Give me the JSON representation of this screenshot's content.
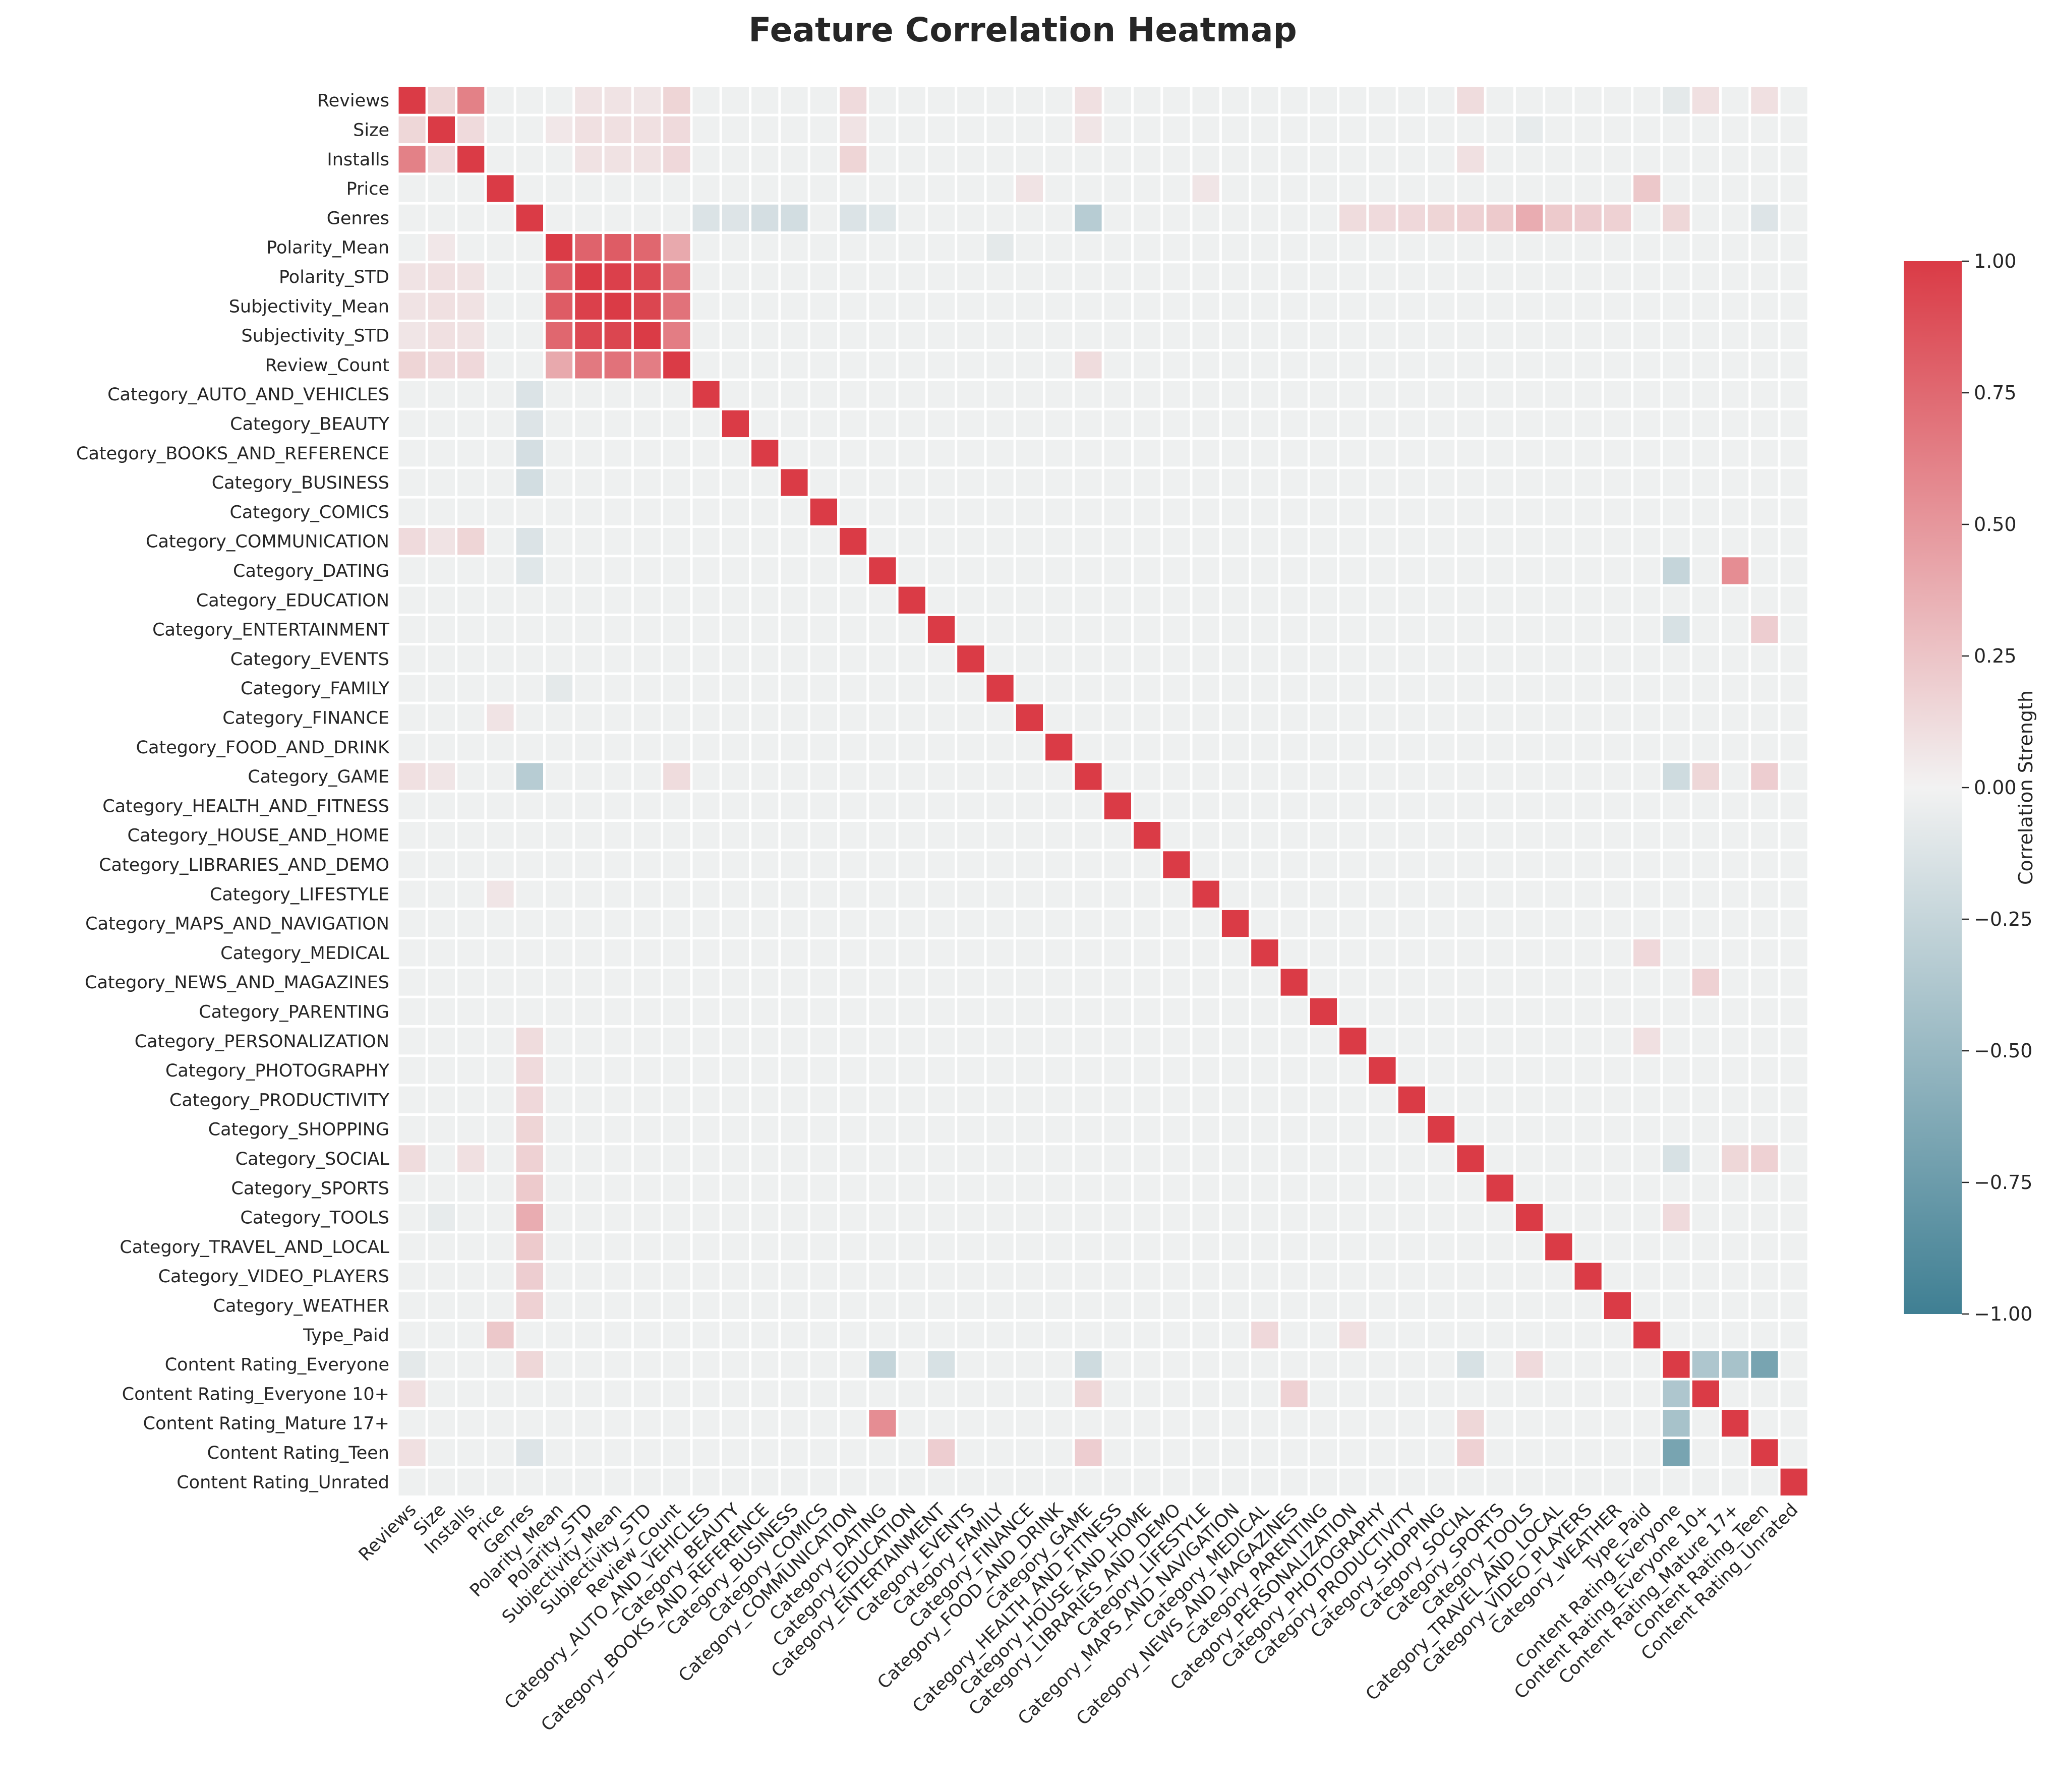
{
  "chart_data": {
    "type": "heatmap",
    "title": "Feature Correlation Heatmap",
    "features": [
      "Reviews",
      "Size",
      "Installs",
      "Price",
      "Genres",
      "Polarity_Mean",
      "Polarity_STD",
      "Subjectivity_Mean",
      "Subjectivity_STD",
      "Review_Count",
      "Category_AUTO_AND_VEHICLES",
      "Category_BEAUTY",
      "Category_BOOKS_AND_REFERENCE",
      "Category_BUSINESS",
      "Category_COMICS",
      "Category_COMMUNICATION",
      "Category_DATING",
      "Category_EDUCATION",
      "Category_ENTERTAINMENT",
      "Category_EVENTS",
      "Category_FAMILY",
      "Category_FINANCE",
      "Category_FOOD_AND_DRINK",
      "Category_GAME",
      "Category_HEALTH_AND_FITNESS",
      "Category_HOUSE_AND_HOME",
      "Category_LIBRARIES_AND_DEMO",
      "Category_LIFESTYLE",
      "Category_MAPS_AND_NAVIGATION",
      "Category_MEDICAL",
      "Category_NEWS_AND_MAGAZINES",
      "Category_PARENTING",
      "Category_PERSONALIZATION",
      "Category_PHOTOGRAPHY",
      "Category_PRODUCTIVITY",
      "Category_SHOPPING",
      "Category_SOCIAL",
      "Category_SPORTS",
      "Category_TOOLS",
      "Category_TRAVEL_AND_LOCAL",
      "Category_VIDEO_PLAYERS",
      "Category_WEATHER",
      "Type_Paid",
      "Content Rating_Everyone",
      "Content Rating_Everyone 10+",
      "Content Rating_Mature 17+",
      "Content Rating_Teen",
      "Content Rating_Unrated"
    ],
    "correlations": [
      {
        "a": "Reviews",
        "b": "Size",
        "value": 0.15
      },
      {
        "a": "Reviews",
        "b": "Installs",
        "value": 0.62
      },
      {
        "a": "Reviews",
        "b": "Polarity_STD",
        "value": 0.08
      },
      {
        "a": "Reviews",
        "b": "Subjectivity_Mean",
        "value": 0.08
      },
      {
        "a": "Reviews",
        "b": "Subjectivity_STD",
        "value": 0.07
      },
      {
        "a": "Reviews",
        "b": "Review_Count",
        "value": 0.16
      },
      {
        "a": "Reviews",
        "b": "Category_COMMUNICATION",
        "value": 0.13
      },
      {
        "a": "Reviews",
        "b": "Category_GAME",
        "value": 0.1
      },
      {
        "a": "Reviews",
        "b": "Category_SOCIAL",
        "value": 0.12
      },
      {
        "a": "Reviews",
        "b": "Content Rating_Everyone",
        "value": -0.08
      },
      {
        "a": "Reviews",
        "b": "Content Rating_Everyone 10+",
        "value": 0.1
      },
      {
        "a": "Reviews",
        "b": "Content Rating_Teen",
        "value": 0.1
      },
      {
        "a": "Size",
        "b": "Installs",
        "value": 0.13
      },
      {
        "a": "Size",
        "b": "Polarity_Mean",
        "value": 0.06
      },
      {
        "a": "Size",
        "b": "Polarity_STD",
        "value": 0.1
      },
      {
        "a": "Size",
        "b": "Subjectivity_Mean",
        "value": 0.1
      },
      {
        "a": "Size",
        "b": "Subjectivity_STD",
        "value": 0.1
      },
      {
        "a": "Size",
        "b": "Review_Count",
        "value": 0.13
      },
      {
        "a": "Size",
        "b": "Category_COMMUNICATION",
        "value": 0.08
      },
      {
        "a": "Size",
        "b": "Category_GAME",
        "value": 0.07
      },
      {
        "a": "Size",
        "b": "Category_TOOLS",
        "value": -0.06
      },
      {
        "a": "Installs",
        "b": "Polarity_STD",
        "value": 0.09
      },
      {
        "a": "Installs",
        "b": "Subjectivity_Mean",
        "value": 0.09
      },
      {
        "a": "Installs",
        "b": "Subjectivity_STD",
        "value": 0.09
      },
      {
        "a": "Installs",
        "b": "Review_Count",
        "value": 0.14
      },
      {
        "a": "Installs",
        "b": "Category_COMMUNICATION",
        "value": 0.16
      },
      {
        "a": "Installs",
        "b": "Category_SOCIAL",
        "value": 0.1
      },
      {
        "a": "Price",
        "b": "Category_FINANCE",
        "value": 0.08
      },
      {
        "a": "Price",
        "b": "Category_LIFESTYLE",
        "value": 0.07
      },
      {
        "a": "Price",
        "b": "Type_Paid",
        "value": 0.23
      },
      {
        "a": "Genres",
        "b": "Category_AUTO_AND_VEHICLES",
        "value": -0.13
      },
      {
        "a": "Genres",
        "b": "Category_BEAUTY",
        "value": -0.12
      },
      {
        "a": "Genres",
        "b": "Category_BOOKS_AND_REFERENCE",
        "value": -0.17
      },
      {
        "a": "Genres",
        "b": "Category_BUSINESS",
        "value": -0.18
      },
      {
        "a": "Genres",
        "b": "Category_COMMUNICATION",
        "value": -0.13
      },
      {
        "a": "Genres",
        "b": "Category_DATING",
        "value": -0.1
      },
      {
        "a": "Genres",
        "b": "Category_GAME",
        "value": -0.33
      },
      {
        "a": "Genres",
        "b": "Category_PERSONALIZATION",
        "value": 0.12
      },
      {
        "a": "Genres",
        "b": "Category_PHOTOGRAPHY",
        "value": 0.13
      },
      {
        "a": "Genres",
        "b": "Category_PRODUCTIVITY",
        "value": 0.14
      },
      {
        "a": "Genres",
        "b": "Category_SHOPPING",
        "value": 0.16
      },
      {
        "a": "Genres",
        "b": "Category_SOCIAL",
        "value": 0.18
      },
      {
        "a": "Genres",
        "b": "Category_SPORTS",
        "value": 0.22
      },
      {
        "a": "Genres",
        "b": "Category_TOOLS",
        "value": 0.38
      },
      {
        "a": "Genres",
        "b": "Category_TRAVEL_AND_LOCAL",
        "value": 0.22
      },
      {
        "a": "Genres",
        "b": "Category_VIDEO_PLAYERS",
        "value": 0.2
      },
      {
        "a": "Genres",
        "b": "Category_WEATHER",
        "value": 0.18
      },
      {
        "a": "Genres",
        "b": "Content Rating_Everyone",
        "value": 0.15
      },
      {
        "a": "Genres",
        "b": "Content Rating_Teen",
        "value": -0.12
      },
      {
        "a": "Polarity_Mean",
        "b": "Polarity_STD",
        "value": 0.78
      },
      {
        "a": "Polarity_Mean",
        "b": "Subjectivity_Mean",
        "value": 0.82
      },
      {
        "a": "Polarity_Mean",
        "b": "Subjectivity_STD",
        "value": 0.76
      },
      {
        "a": "Polarity_Mean",
        "b": "Review_Count",
        "value": 0.4
      },
      {
        "a": "Polarity_Mean",
        "b": "Category_FAMILY",
        "value": -0.08
      },
      {
        "a": "Polarity_STD",
        "b": "Subjectivity_Mean",
        "value": 0.97
      },
      {
        "a": "Polarity_STD",
        "b": "Subjectivity_STD",
        "value": 0.93
      },
      {
        "a": "Polarity_STD",
        "b": "Review_Count",
        "value": 0.66
      },
      {
        "a": "Subjectivity_Mean",
        "b": "Subjectivity_STD",
        "value": 0.94
      },
      {
        "a": "Subjectivity_Mean",
        "b": "Review_Count",
        "value": 0.7
      },
      {
        "a": "Subjectivity_STD",
        "b": "Review_Count",
        "value": 0.64
      },
      {
        "a": "Review_Count",
        "b": "Category_GAME",
        "value": 0.12
      },
      {
        "a": "Category_DATING",
        "b": "Content Rating_Everyone",
        "value": -0.25
      },
      {
        "a": "Category_DATING",
        "b": "Content Rating_Mature 17+",
        "value": 0.55
      },
      {
        "a": "Category_ENTERTAINMENT",
        "b": "Content Rating_Everyone",
        "value": -0.15
      },
      {
        "a": "Category_ENTERTAINMENT",
        "b": "Content Rating_Teen",
        "value": 0.2
      },
      {
        "a": "Category_GAME",
        "b": "Content Rating_Everyone",
        "value": -0.2
      },
      {
        "a": "Category_GAME",
        "b": "Content Rating_Everyone 10+",
        "value": 0.15
      },
      {
        "a": "Category_GAME",
        "b": "Content Rating_Teen",
        "value": 0.2
      },
      {
        "a": "Category_MEDICAL",
        "b": "Type_Paid",
        "value": 0.14
      },
      {
        "a": "Category_NEWS_AND_MAGAZINES",
        "b": "Content Rating_Everyone 10+",
        "value": 0.18
      },
      {
        "a": "Category_PERSONALIZATION",
        "b": "Type_Paid",
        "value": 0.1
      },
      {
        "a": "Category_SOCIAL",
        "b": "Content Rating_Everyone",
        "value": -0.15
      },
      {
        "a": "Category_SOCIAL",
        "b": "Content Rating_Mature 17+",
        "value": 0.15
      },
      {
        "a": "Category_SOCIAL",
        "b": "Content Rating_Teen",
        "value": 0.18
      },
      {
        "a": "Category_TOOLS",
        "b": "Content Rating_Everyone",
        "value": 0.13
      },
      {
        "a": "Content Rating_Everyone",
        "b": "Content Rating_Everyone 10+",
        "value": -0.38
      },
      {
        "a": "Content Rating_Everyone",
        "b": "Content Rating_Mature 17+",
        "value": -0.42
      },
      {
        "a": "Content Rating_Everyone",
        "b": "Content Rating_Teen",
        "value": -0.68
      }
    ],
    "default_value": -0.02,
    "diagonal_value": 1.0,
    "colorbar": {
      "label": "Correlation Strength",
      "range": [
        -1.0,
        1.0
      ],
      "ticks": [
        "1.00",
        "0.75",
        "0.50",
        "0.25",
        "0.00",
        "−0.25",
        "−0.50",
        "−0.75",
        "−1.00"
      ],
      "tick_values": [
        1.0,
        0.75,
        0.5,
        0.25,
        0.0,
        -0.25,
        -0.5,
        -0.75,
        -1.0
      ],
      "colors": {
        "negative": "#3f7f93",
        "center": "#f2f2f2",
        "positive": "#da3b46"
      }
    },
    "grid_line_color": "#ffffff"
  }
}
